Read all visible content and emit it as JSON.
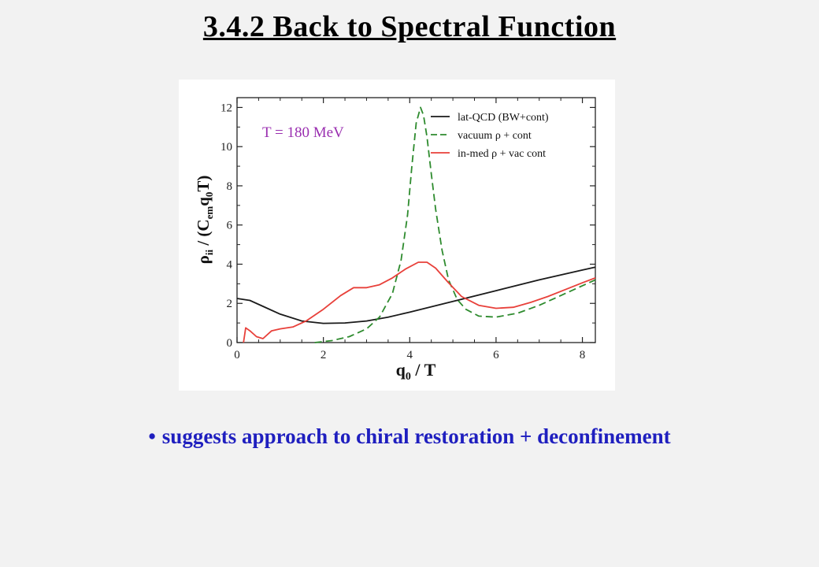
{
  "slide": {
    "title": "3.4.2  Back to Spectral Function",
    "bullet_text": "suggests approach to chiral restoration + deconfinement",
    "bullet_symbol": "•"
  },
  "chart_data": {
    "type": "line",
    "annotation": "T = 180 MeV",
    "annotation_color": "#9a2fb0",
    "xlabel_parts": {
      "base": "q",
      "sub": "0",
      "rest": " / T"
    },
    "ylabel_parts": {
      "rho": "ρ",
      "rho_sub": "ii",
      "mid": " / (C",
      "c_sub": "em",
      "q": "q",
      "q_sub": "0",
      "end": "T)"
    },
    "xlim": [
      0,
      8.3
    ],
    "ylim": [
      0,
      12.5
    ],
    "x_ticks": [
      0,
      2,
      4,
      6,
      8
    ],
    "y_ticks": [
      0,
      2,
      4,
      6,
      8,
      10,
      12
    ],
    "legend_position": "top-right",
    "series": [
      {
        "name": "lat-QCD (BW+cont)",
        "color": "#1a1a1a",
        "dash": "solid",
        "x": [
          0,
          0.3,
          0.6,
          1.0,
          1.5,
          2.0,
          2.5,
          3.0,
          3.5,
          4.0,
          5.0,
          6.0,
          7.0,
          8.0,
          8.3
        ],
        "y": [
          2.25,
          2.15,
          1.85,
          1.45,
          1.1,
          0.98,
          1.0,
          1.1,
          1.3,
          1.55,
          2.1,
          2.65,
          3.2,
          3.7,
          3.85
        ]
      },
      {
        "name": "vacuum ρ + cont",
        "color": "#2e8b2e",
        "dash": "dashed",
        "x": [
          1.8,
          2.2,
          2.6,
          3.0,
          3.3,
          3.6,
          3.8,
          3.95,
          4.05,
          4.15,
          4.25,
          4.32,
          4.4,
          4.5,
          4.6,
          4.75,
          4.9,
          5.1,
          5.3,
          5.6,
          6.0,
          6.5,
          7.0,
          7.5,
          8.0,
          8.3
        ],
        "y": [
          0,
          0.1,
          0.3,
          0.7,
          1.3,
          2.5,
          4.2,
          6.5,
          9.0,
          11.2,
          12.0,
          11.6,
          10.5,
          8.6,
          6.8,
          4.7,
          3.2,
          2.2,
          1.7,
          1.35,
          1.3,
          1.5,
          1.9,
          2.4,
          2.9,
          3.2
        ]
      },
      {
        "name": "in-med ρ + vac cont",
        "color": "#e8403a",
        "dash": "solid",
        "x": [
          0.15,
          0.2,
          0.3,
          0.45,
          0.6,
          0.8,
          1.0,
          1.3,
          1.6,
          2.0,
          2.4,
          2.7,
          3.0,
          3.3,
          3.6,
          3.9,
          4.2,
          4.4,
          4.6,
          4.9,
          5.2,
          5.6,
          6.0,
          6.4,
          6.8,
          7.2,
          7.6,
          8.0,
          8.3
        ],
        "y": [
          0,
          0.75,
          0.6,
          0.3,
          0.2,
          0.6,
          0.7,
          0.8,
          1.1,
          1.7,
          2.4,
          2.8,
          2.8,
          2.95,
          3.3,
          3.75,
          4.1,
          4.1,
          3.8,
          3.05,
          2.35,
          1.9,
          1.75,
          1.8,
          2.05,
          2.35,
          2.7,
          3.05,
          3.3
        ]
      }
    ]
  }
}
